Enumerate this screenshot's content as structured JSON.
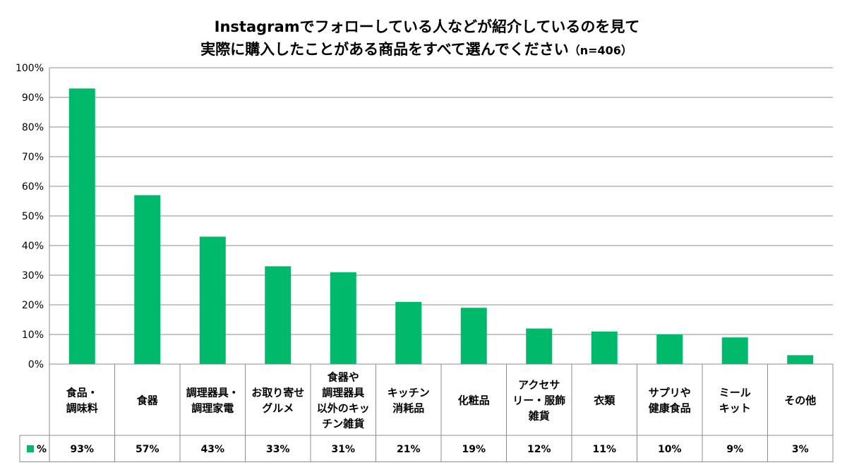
{
  "chart_data": {
    "type": "bar",
    "title_line1": "Instagramでフォローしている人などが紹介しているのを見て",
    "title_line2": "実際に購入したことがある商品をすべて選んでください",
    "title_n": "（n=406）",
    "xlabel": "",
    "ylabel": "",
    "ylim": [
      0,
      100
    ],
    "yticks": [
      "0%",
      "10%",
      "20%",
      "30%",
      "40%",
      "50%",
      "60%",
      "70%",
      "80%",
      "90%",
      "100%"
    ],
    "grid": true,
    "legend_position": "bottom-left",
    "series": [
      {
        "name": "%",
        "color": "#00b96b",
        "values": [
          93,
          57,
          43,
          33,
          31,
          21,
          19,
          12,
          11,
          10,
          9,
          3
        ],
        "labels": [
          "93%",
          "57%",
          "43%",
          "33%",
          "31%",
          "21%",
          "19%",
          "12%",
          "11%",
          "10%",
          "9%",
          "3%"
        ]
      }
    ],
    "categories": [
      [
        "食品・",
        "調味料"
      ],
      [
        "食器"
      ],
      [
        "調理器具・",
        "調理家電"
      ],
      [
        "お取り寄せ",
        "グルメ"
      ],
      [
        "食器や",
        "調理器具",
        "以外のキッ",
        "チン雑貨"
      ],
      [
        "キッチン",
        "消耗品"
      ],
      [
        "化粧品"
      ],
      [
        "アクセサ",
        "リー・服飾",
        "雑貨"
      ],
      [
        "衣類"
      ],
      [
        "サプリや",
        "健康食品"
      ],
      [
        "ミール",
        "キット"
      ],
      [
        "その他"
      ]
    ]
  }
}
